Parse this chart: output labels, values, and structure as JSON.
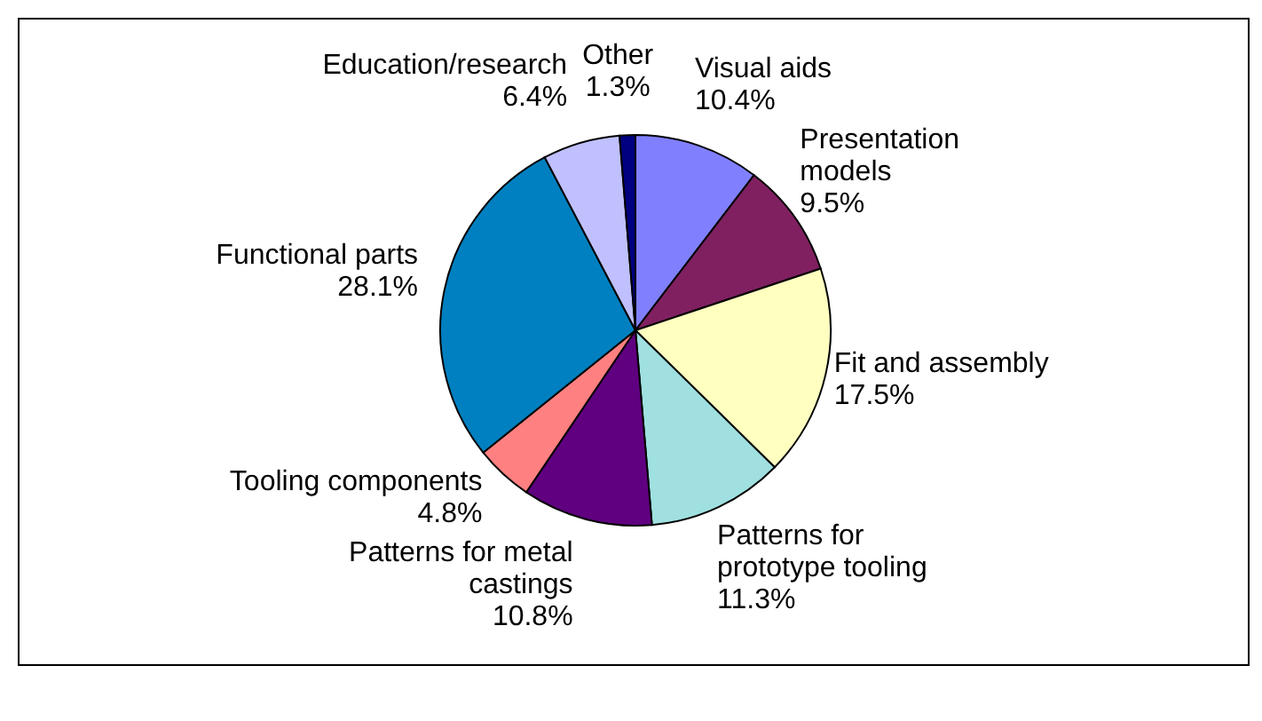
{
  "chart_data": {
    "type": "pie",
    "categories": [
      "Visual aids",
      "Presentation models",
      "Fit and assembly",
      "Patterns for prototype tooling",
      "Patterns for metal castings",
      "Tooling components",
      "Functional parts",
      "Education/research",
      "Other"
    ],
    "values": [
      10.4,
      9.5,
      17.5,
      11.3,
      10.8,
      4.8,
      28.1,
      6.4,
      1.3
    ],
    "colors": [
      "#8080ff",
      "#802060",
      "#ffffc0",
      "#a0e0e0",
      "#600080",
      "#ff8080",
      "#0080c0",
      "#c0c0ff",
      "#000080"
    ],
    "value_labels": [
      "10.4%",
      "9.5%",
      "17.5%",
      "11.3%",
      "10.8%",
      "4.8%",
      "28.1%",
      "6.4%",
      "1.3%"
    ]
  }
}
